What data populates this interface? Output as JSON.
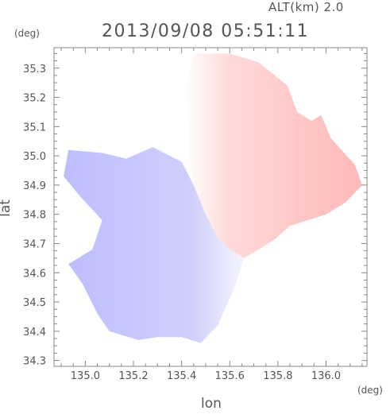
{
  "header": {
    "altitude_label": "ALT(km) 2.0",
    "timestamp": "2013/09/08 05:51:11"
  },
  "chart_data": {
    "type": "heatmap",
    "title": "2013/09/08 05:51:11",
    "xlabel": "lon",
    "ylabel": "lat",
    "x_unit": "(deg)",
    "y_unit": "(deg)",
    "xlim": [
      134.87,
      136.17
    ],
    "ylim": [
      34.28,
      35.37
    ],
    "x_ticks": [
      135.0,
      135.2,
      135.4,
      135.6,
      135.8,
      136.0
    ],
    "x_tick_labels": [
      "135.0",
      "135.2",
      "135.4",
      "135.6",
      "135.8",
      "136.0"
    ],
    "y_ticks": [
      34.3,
      34.4,
      34.5,
      34.6,
      34.7,
      34.8,
      34.9,
      35.0,
      35.1,
      35.2,
      35.3
    ],
    "y_tick_labels": [
      "34.3",
      "34.4",
      "34.5",
      "34.6",
      "34.7",
      "34.8",
      "34.9",
      "35.0",
      "35.1",
      "35.2",
      "35.3"
    ],
    "grid": false,
    "colors": {
      "positive": "#ffb4b4",
      "negative": "#b4b4ff",
      "zero": "#ffffff"
    },
    "regions": [
      {
        "name": "positive-velocity-region",
        "sign": "positive",
        "outline": [
          [
            135.45,
            35.35
          ],
          [
            135.6,
            35.35
          ],
          [
            135.72,
            35.32
          ],
          [
            135.84,
            35.24
          ],
          [
            135.88,
            35.15
          ],
          [
            135.94,
            35.12
          ],
          [
            135.98,
            35.14
          ],
          [
            136.02,
            35.06
          ],
          [
            136.12,
            34.97
          ],
          [
            136.15,
            34.9
          ],
          [
            136.08,
            34.84
          ],
          [
            136.0,
            34.8
          ],
          [
            135.85,
            34.76
          ],
          [
            135.78,
            34.71
          ],
          [
            135.66,
            34.65
          ],
          [
            135.6,
            34.68
          ],
          [
            135.55,
            34.72
          ],
          [
            135.5,
            34.8
          ],
          [
            135.45,
            34.9
          ],
          [
            135.43,
            35.0
          ],
          [
            135.43,
            35.1
          ],
          [
            135.41,
            35.23
          ],
          [
            135.44,
            35.3
          ]
        ]
      },
      {
        "name": "negative-velocity-region",
        "sign": "negative",
        "outline": [
          [
            134.93,
            35.02
          ],
          [
            135.07,
            35.01
          ],
          [
            135.17,
            34.99
          ],
          [
            135.28,
            35.03
          ],
          [
            135.4,
            34.98
          ],
          [
            135.45,
            34.9
          ],
          [
            135.5,
            34.8
          ],
          [
            135.55,
            34.72
          ],
          [
            135.6,
            34.68
          ],
          [
            135.66,
            34.65
          ],
          [
            135.62,
            34.55
          ],
          [
            135.55,
            34.42
          ],
          [
            135.48,
            34.36
          ],
          [
            135.4,
            34.38
          ],
          [
            135.3,
            34.38
          ],
          [
            135.22,
            34.37
          ],
          [
            135.1,
            34.4
          ],
          [
            135.05,
            34.46
          ],
          [
            134.99,
            34.56
          ],
          [
            134.93,
            34.63
          ],
          [
            135.03,
            34.68
          ],
          [
            135.07,
            34.78
          ],
          [
            134.98,
            34.86
          ],
          [
            134.91,
            34.93
          ]
        ]
      }
    ]
  }
}
